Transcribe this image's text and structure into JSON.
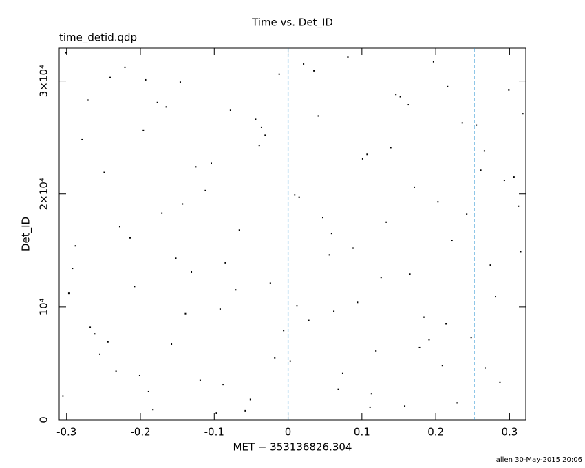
{
  "chart_data": {
    "type": "scatter",
    "title": "Time vs. Det_ID",
    "subtitle": "time_detid.qdp",
    "x_label": "MET − 353136826.304",
    "y_label": "Det_ID",
    "footer": "allen 30-May-2015 20:06",
    "color": "#000000",
    "reference_lines": [
      0,
      0.252
    ],
    "reference_color": "#1f8fcf",
    "xlim": [
      -0.31,
      0.322
    ],
    "ylim": [
      0,
      32900
    ],
    "xticks": [
      -0.3,
      -0.2,
      -0.1,
      0,
      0.1,
      0.2,
      0.3
    ],
    "yticks": [
      0,
      {
        "value": 10000,
        "label": "10⁴"
      },
      {
        "value": 20000,
        "label": "2×10⁴"
      },
      {
        "value": 30000,
        "label": "3×10⁴"
      }
    ],
    "x": [
      -0.305,
      -0.288,
      -0.271,
      -0.262,
      -0.249,
      -0.233,
      -0.221,
      -0.208,
      -0.196,
      -0.183,
      -0.171,
      -0.158,
      -0.146,
      -0.131,
      -0.119,
      -0.104,
      -0.092,
      -0.078,
      -0.066,
      -0.051,
      -0.039,
      -0.024,
      -0.012,
      0.003,
      0.015,
      0.028,
      0.041,
      0.056,
      0.068,
      0.081,
      0.094,
      0.107,
      0.119,
      0.133,
      0.146,
      0.158,
      0.171,
      0.184,
      0.197,
      0.209,
      0.222,
      0.236,
      0.248,
      0.261,
      0.274,
      0.287,
      0.299,
      0.312,
      -0.297,
      -0.279,
      -0.255,
      -0.241,
      -0.214,
      -0.189,
      -0.165,
      -0.139,
      -0.112,
      -0.085,
      -0.058,
      -0.031,
      -0.006,
      0.021,
      0.047,
      0.074,
      0.101,
      0.126,
      0.152,
      0.178,
      0.203,
      0.229,
      0.255,
      0.281,
      0.306,
      -0.301,
      -0.268,
      -0.228,
      -0.201,
      -0.177,
      -0.152,
      -0.125,
      -0.097,
      -0.071,
      -0.044,
      -0.018,
      0.009,
      0.035,
      0.062,
      0.088,
      0.113,
      0.139,
      0.165,
      0.191,
      0.216,
      0.242,
      0.267,
      0.293,
      0.318,
      -0.292,
      -0.244,
      -0.193,
      -0.143,
      -0.088,
      -0.036,
      0.012,
      0.059,
      0.111,
      0.163,
      0.214,
      0.266,
      0.315
    ],
    "values": [
      2100,
      15400,
      28300,
      7600,
      21900,
      4300,
      31200,
      11800,
      25600,
      900,
      18300,
      6700,
      29900,
      13100,
      3500,
      22700,
      9800,
      27400,
      16800,
      1800,
      24300,
      12100,
      30600,
      5200,
      19700,
      8800,
      26900,
      14600,
      2700,
      32100,
      10400,
      23500,
      6100,
      17500,
      28800,
      1200,
      20600,
      9100,
      31700,
      4800,
      15900,
      26300,
      7300,
      22100,
      13700,
      3300,
      29200,
      18900,
      11200,
      24800,
      5800,
      30300,
      16100,
      2500,
      27700,
      9400,
      20300,
      13900,
      800,
      25200,
      7900,
      31500,
      17900,
      4100,
      23100,
      12600,
      28600,
      6400,
      19300,
      1500,
      26100,
      10900,
      21500,
      32500,
      8200,
      17100,
      3900,
      28100,
      14300,
      22400,
      600,
      11500,
      26600,
      5500,
      19900,
      30900,
      9600,
      15200,
      2300,
      24100,
      12900,
      7100,
      29500,
      18200,
      4600,
      21200,
      27100,
      13400,
      6900,
      30100,
      19100,
      3100,
      25900,
      10100,
      16500,
      1100,
      27900,
      8500,
      23800,
      14900
    ]
  }
}
